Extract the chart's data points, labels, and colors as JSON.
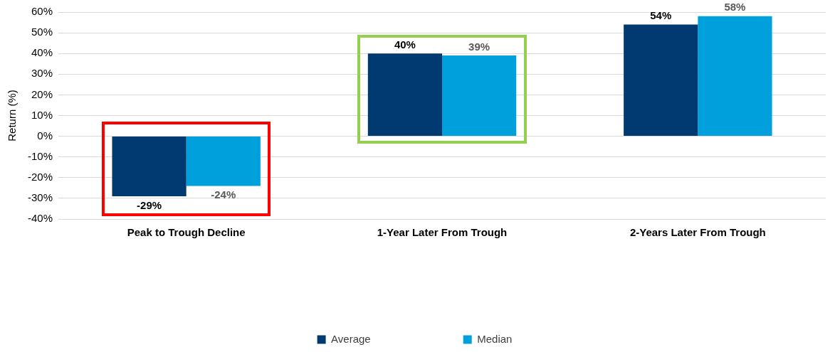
{
  "chart_data": {
    "type": "bar",
    "ylabel": "Return (%)",
    "categories": [
      "Peak to Trough Decline",
      "1-Year Later From Trough",
      "2-Years Later From Trough"
    ],
    "series": [
      {
        "name": "Average",
        "color": "#003a70",
        "values": [
          -29,
          40,
          54
        ],
        "value_labels": [
          "-29%",
          "40%",
          "54%"
        ]
      },
      {
        "name": "Median",
        "color": "#00a0dc",
        "values": [
          -24,
          39,
          58
        ],
        "value_labels": [
          "-24%",
          "39%",
          "58%"
        ]
      }
    ],
    "ylim": [
      -40,
      60
    ],
    "yticks": [
      {
        "value": -40,
        "label": "-40%"
      },
      {
        "value": -30,
        "label": "-30%"
      },
      {
        "value": -20,
        "label": "-20%"
      },
      {
        "value": -10,
        "label": "-10%"
      },
      {
        "value": 0,
        "label": "0%"
      },
      {
        "value": 10,
        "label": "10%"
      },
      {
        "value": 20,
        "label": "20%"
      },
      {
        "value": 30,
        "label": "30%"
      },
      {
        "value": 40,
        "label": "40%"
      },
      {
        "value": 50,
        "label": "50%"
      },
      {
        "value": 60,
        "label": "60%"
      }
    ],
    "grid": "y",
    "legend": "bottom"
  }
}
